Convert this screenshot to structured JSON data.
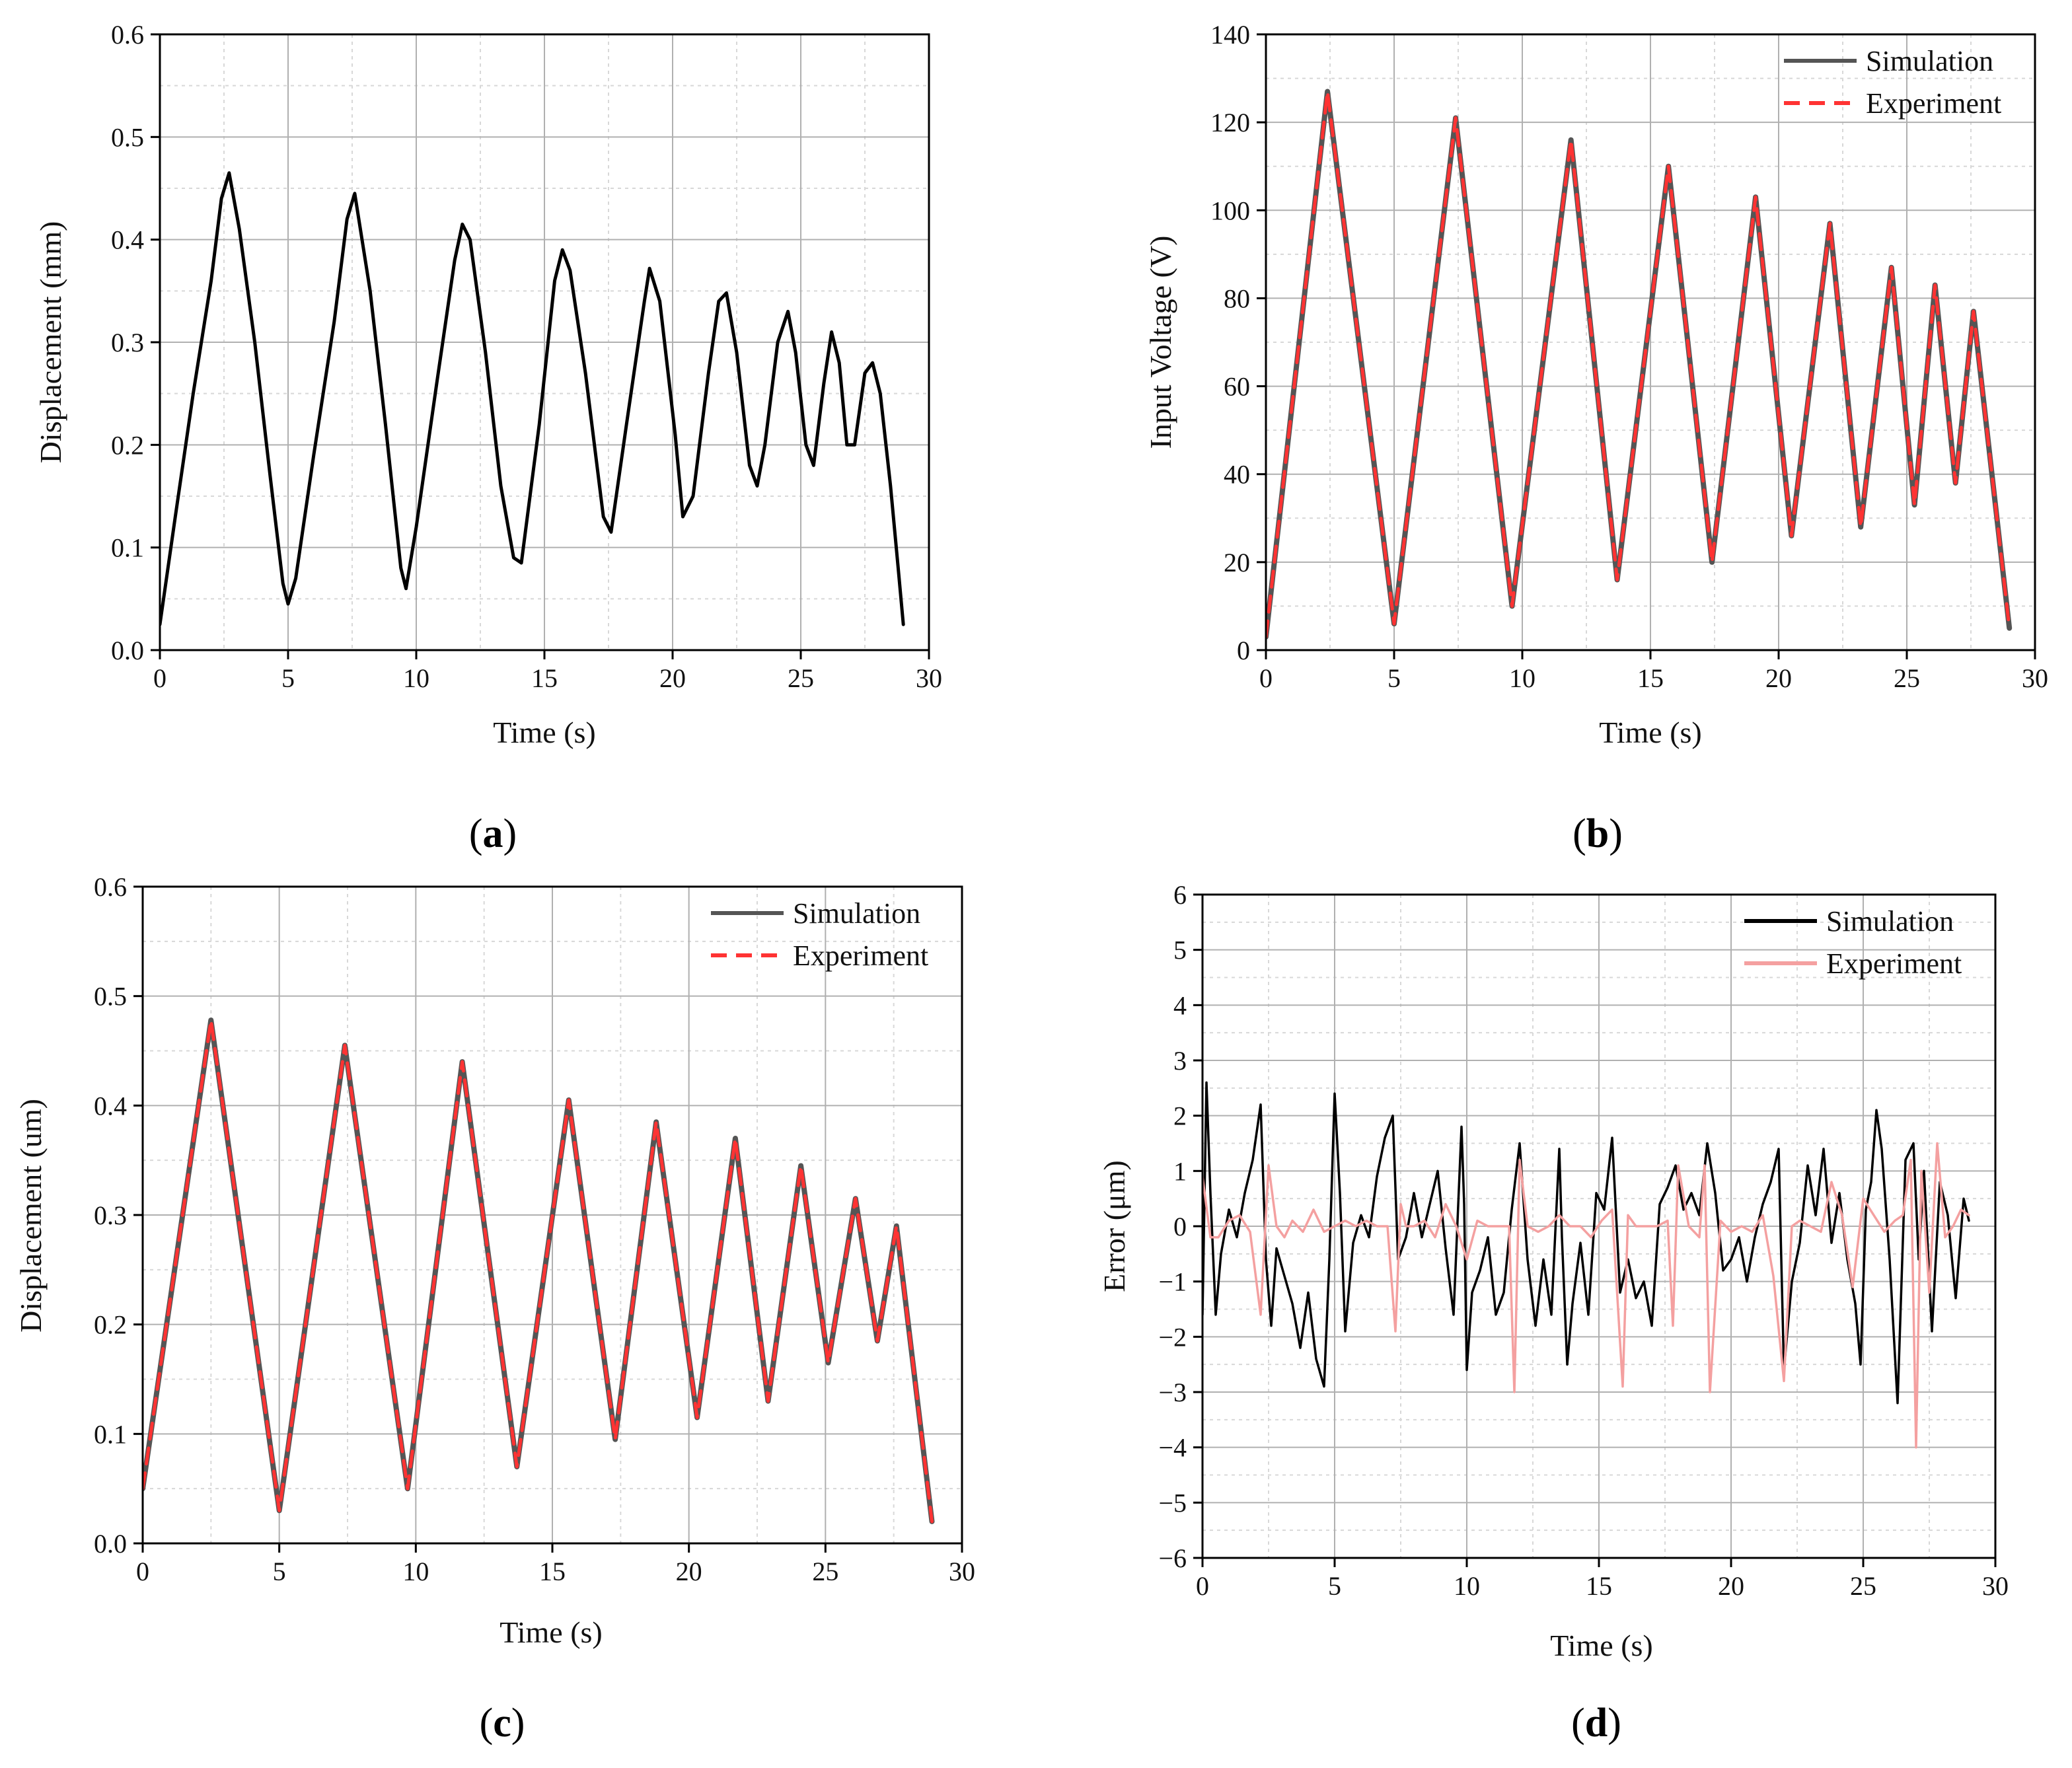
{
  "colors": {
    "simulation": "#555555",
    "experiment": "#ff3333",
    "black_series": "#000000",
    "experiment_light": "#f4a0a0",
    "grid_major": "#b0b0b0",
    "grid_minor": "#d8d8d8",
    "axis": "#000000"
  },
  "chart_data": [
    {
      "id": "a",
      "type": "line",
      "caption": {
        "open": "(",
        "letter": "a",
        "close": ")"
      },
      "xlabel": "Time (s)",
      "ylabel": "Displacement (mm)",
      "xlim": [
        0,
        30
      ],
      "ylim": [
        0,
        0.6
      ],
      "xticks": [
        0,
        5,
        10,
        15,
        20,
        25,
        30
      ],
      "xtick_labels": [
        "0",
        "5",
        "10",
        "15",
        "20",
        "25",
        "30"
      ],
      "yticks": [
        0,
        0.1,
        0.2,
        0.3,
        0.4,
        0.5,
        0.6
      ],
      "ytick_labels": [
        "0.0",
        "0.1",
        "0.2",
        "0.3",
        "0.4",
        "0.5",
        "0.6"
      ],
      "legend": null,
      "series": [
        {
          "name": "Displacement",
          "color_key": "black_series",
          "dash": "",
          "width": 5,
          "x": [
            0,
            0.6,
            1.3,
            2.0,
            2.4,
            2.7,
            3.1,
            3.7,
            4.3,
            4.8,
            5.0,
            5.3,
            6.0,
            6.8,
            7.3,
            7.6,
            8.2,
            8.8,
            9.4,
            9.6,
            10.0,
            10.8,
            11.5,
            11.8,
            12.1,
            12.7,
            13.3,
            13.8,
            14.1,
            14.8,
            15.4,
            15.7,
            16.0,
            16.6,
            17.3,
            17.6,
            18.2,
            18.9,
            19.1,
            19.5,
            20.1,
            20.4,
            20.8,
            21.4,
            21.8,
            22.1,
            22.5,
            23.0,
            23.3,
            23.6,
            24.1,
            24.5,
            24.8,
            25.2,
            25.5,
            25.9,
            26.2,
            26.5,
            26.8,
            27.1,
            27.5,
            27.8,
            28.1,
            28.5,
            28.8,
            29.0
          ],
          "y": [
            0.025,
            0.13,
            0.25,
            0.36,
            0.44,
            0.465,
            0.41,
            0.3,
            0.17,
            0.065,
            0.045,
            0.07,
            0.19,
            0.32,
            0.42,
            0.445,
            0.35,
            0.22,
            0.08,
            0.06,
            0.12,
            0.26,
            0.38,
            0.415,
            0.4,
            0.29,
            0.16,
            0.09,
            0.085,
            0.22,
            0.36,
            0.39,
            0.37,
            0.27,
            0.13,
            0.115,
            0.22,
            0.34,
            0.372,
            0.34,
            0.21,
            0.13,
            0.15,
            0.27,
            0.34,
            0.348,
            0.29,
            0.18,
            0.16,
            0.2,
            0.3,
            0.33,
            0.29,
            0.2,
            0.18,
            0.26,
            0.31,
            0.28,
            0.2,
            0.2,
            0.27,
            0.28,
            0.25,
            0.16,
            0.08,
            0.025
          ]
        }
      ]
    },
    {
      "id": "b",
      "type": "line",
      "caption": {
        "open": "(",
        "letter": "b",
        "close": ")"
      },
      "xlabel": "Time (s)",
      "ylabel": "Input Voltage (V)",
      "xlim": [
        0,
        30
      ],
      "ylim": [
        0,
        140
      ],
      "xticks": [
        0,
        5,
        10,
        15,
        20,
        25,
        30
      ],
      "xtick_labels": [
        "0",
        "5",
        "10",
        "15",
        "20",
        "25",
        "30"
      ],
      "yticks": [
        0,
        20,
        40,
        60,
        80,
        100,
        120,
        140
      ],
      "ytick_labels": [
        "0",
        "20",
        "40",
        "60",
        "80",
        "100",
        "120",
        "140"
      ],
      "legend": {
        "position": "top-right",
        "entries": [
          {
            "label": "Simulation",
            "color_key": "simulation",
            "dash": ""
          },
          {
            "label": "Experiment",
            "color_key": "experiment",
            "dash": "24 14"
          }
        ]
      },
      "series": [
        {
          "name": "Simulation",
          "color_key": "simulation",
          "dash": "",
          "width": 8,
          "x": [
            0,
            2.4,
            5.0,
            7.4,
            9.6,
            11.9,
            13.7,
            15.7,
            17.4,
            19.1,
            20.5,
            22.0,
            23.2,
            24.4,
            25.3,
            26.1,
            26.9,
            27.6,
            29.0
          ],
          "y": [
            3,
            127,
            6,
            121,
            10,
            116,
            16,
            110,
            20,
            103,
            26,
            97,
            28,
            87,
            33,
            83,
            38,
            77,
            5
          ]
        },
        {
          "name": "Experiment",
          "color_key": "experiment",
          "dash": "24 14",
          "width": 5,
          "x": [
            0,
            2.4,
            5.0,
            7.4,
            9.6,
            11.9,
            13.7,
            15.7,
            17.4,
            19.1,
            20.5,
            22.0,
            23.2,
            24.4,
            25.3,
            26.1,
            26.9,
            27.6,
            29.0
          ],
          "y": [
            3,
            127,
            6,
            121,
            10,
            116,
            16,
            110,
            20,
            103,
            26,
            97,
            28,
            87,
            33,
            83,
            38,
            77,
            5
          ]
        }
      ]
    },
    {
      "id": "c",
      "type": "line",
      "caption": {
        "open": "(",
        "letter": "c",
        "close": ")"
      },
      "xlabel": "Time (s)",
      "ylabel": "Displacement (um)",
      "xlim": [
        0,
        30
      ],
      "ylim": [
        0,
        0.6
      ],
      "xticks": [
        0,
        5,
        10,
        15,
        20,
        25,
        30
      ],
      "xtick_labels": [
        "0",
        "5",
        "10",
        "15",
        "20",
        "25",
        "30"
      ],
      "yticks": [
        0,
        0.1,
        0.2,
        0.3,
        0.4,
        0.5,
        0.6
      ],
      "ytick_labels": [
        "0.0",
        "0.1",
        "0.2",
        "0.3",
        "0.4",
        "0.5",
        "0.6"
      ],
      "legend": {
        "position": "top-right",
        "entries": [
          {
            "label": "Simulation",
            "color_key": "simulation",
            "dash": ""
          },
          {
            "label": "Experiment",
            "color_key": "experiment",
            "dash": "24 14"
          }
        ]
      },
      "series": [
        {
          "name": "Simulation",
          "color_key": "simulation",
          "dash": "",
          "width": 8,
          "x": [
            0,
            2.5,
            5.0,
            7.4,
            9.7,
            11.7,
            13.7,
            15.6,
            17.3,
            18.8,
            20.3,
            21.7,
            22.9,
            24.1,
            25.1,
            26.1,
            26.9,
            27.6,
            28.9
          ],
          "y": [
            0.05,
            0.478,
            0.03,
            0.455,
            0.05,
            0.44,
            0.07,
            0.405,
            0.095,
            0.385,
            0.115,
            0.37,
            0.13,
            0.345,
            0.165,
            0.315,
            0.185,
            0.29,
            0.02
          ]
        },
        {
          "name": "Experiment",
          "color_key": "experiment",
          "dash": "24 14",
          "width": 5,
          "x": [
            0,
            2.5,
            5.0,
            7.4,
            9.7,
            11.7,
            13.7,
            15.6,
            17.3,
            18.8,
            20.3,
            21.7,
            22.9,
            24.1,
            25.1,
            26.1,
            26.9,
            27.6,
            28.9
          ],
          "y": [
            0.05,
            0.478,
            0.03,
            0.455,
            0.05,
            0.44,
            0.07,
            0.405,
            0.095,
            0.385,
            0.115,
            0.37,
            0.13,
            0.345,
            0.165,
            0.315,
            0.185,
            0.29,
            0.02
          ]
        }
      ]
    },
    {
      "id": "d",
      "type": "line",
      "caption": {
        "open": "(",
        "letter": "d",
        "close": ")"
      },
      "xlabel": "Time (s)",
      "ylabel": "Error (μm)",
      "xlim": [
        0,
        30
      ],
      "ylim": [
        -6,
        6
      ],
      "xticks": [
        0,
        5,
        10,
        15,
        20,
        25,
        30
      ],
      "xtick_labels": [
        "0",
        "5",
        "10",
        "15",
        "20",
        "25",
        "30"
      ],
      "yticks": [
        -6,
        -5,
        -4,
        -3,
        -2,
        -1,
        0,
        1,
        2,
        3,
        4,
        5,
        6
      ],
      "ytick_labels": [
        "−6",
        "−5",
        "−4",
        "−3",
        "−2",
        "−1",
        "0",
        "1",
        "2",
        "3",
        "4",
        "5",
        "6"
      ],
      "legend": {
        "position": "top-right",
        "entries": [
          {
            "label": "Simulation",
            "color_key": "black_series",
            "dash": ""
          },
          {
            "label": "Experiment",
            "color_key": "experiment_light",
            "dash": ""
          }
        ]
      },
      "series": [
        {
          "name": "Simulation",
          "color_key": "black_series",
          "dash": "",
          "width": 3.5,
          "x": [
            0,
            0.15,
            0.3,
            0.5,
            0.7,
            1.0,
            1.3,
            1.6,
            1.9,
            2.2,
            2.4,
            2.6,
            2.8,
            3.1,
            3.4,
            3.7,
            4.0,
            4.3,
            4.6,
            4.8,
            5.0,
            5.2,
            5.4,
            5.7,
            6.0,
            6.3,
            6.6,
            6.9,
            7.2,
            7.4,
            7.7,
            8.0,
            8.3,
            8.6,
            8.9,
            9.2,
            9.5,
            9.8,
            9.9,
            10.0,
            10.2,
            10.5,
            10.8,
            11.1,
            11.4,
            11.7,
            12.0,
            12.3,
            12.6,
            12.9,
            13.2,
            13.5,
            13.6,
            13.8,
            14.0,
            14.3,
            14.6,
            14.9,
            15.2,
            15.5,
            15.8,
            16.1,
            16.4,
            16.7,
            17.0,
            17.3,
            17.6,
            17.9,
            18.2,
            18.5,
            18.8,
            19.1,
            19.4,
            19.7,
            20.0,
            20.3,
            20.6,
            20.9,
            21.2,
            21.5,
            21.8,
            22.0,
            22.3,
            22.6,
            22.9,
            23.2,
            23.5,
            23.8,
            24.1,
            24.4,
            24.7,
            24.9,
            25.1,
            25.3,
            25.5,
            25.7,
            26.0,
            26.3,
            26.6,
            26.9,
            27.1,
            27.3,
            27.6,
            27.9,
            28.2,
            28.5,
            28.8,
            29.0
          ],
          "y": [
            -1.6,
            2.6,
            0.6,
            -1.6,
            -0.5,
            0.3,
            -0.2,
            0.6,
            1.2,
            2.2,
            -0.6,
            -1.8,
            -0.4,
            -0.9,
            -1.4,
            -2.2,
            -1.2,
            -2.4,
            -2.9,
            -0.6,
            2.4,
            0.6,
            -1.9,
            -0.3,
            0.2,
            -0.2,
            0.9,
            1.6,
            2.0,
            -0.6,
            -0.2,
            0.6,
            -0.2,
            0.4,
            1.0,
            -0.4,
            -1.6,
            1.8,
            0.4,
            -2.6,
            -1.2,
            -0.8,
            -0.2,
            -1.6,
            -1.2,
            0.3,
            1.5,
            -0.6,
            -1.8,
            -0.6,
            -1.6,
            1.4,
            -0.2,
            -2.5,
            -1.4,
            -0.3,
            -1.6,
            0.6,
            0.3,
            1.6,
            -1.2,
            -0.6,
            -1.3,
            -1.0,
            -1.8,
            0.4,
            0.7,
            1.1,
            0.3,
            0.6,
            0.2,
            1.5,
            0.6,
            -0.8,
            -0.6,
            -0.2,
            -1.0,
            -0.2,
            0.4,
            0.8,
            1.4,
            -2.6,
            -1.0,
            -0.3,
            1.1,
            0.2,
            1.4,
            -0.3,
            0.6,
            -0.6,
            -1.4,
            -2.5,
            0.3,
            0.8,
            2.1,
            1.4,
            -0.6,
            -3.2,
            1.2,
            1.5,
            -0.6,
            1.0,
            -1.9,
            0.8,
            0.2,
            -1.3,
            0.5,
            0.1
          ]
        },
        {
          "name": "Experiment",
          "color_key": "experiment_light",
          "dash": "",
          "width": 3.5,
          "x": [
            0,
            0.3,
            0.6,
            1.0,
            1.4,
            1.8,
            2.2,
            2.5,
            2.8,
            3.1,
            3.4,
            3.8,
            4.2,
            4.6,
            5.0,
            5.4,
            5.8,
            6.2,
            6.6,
            7.0,
            7.3,
            7.5,
            7.7,
            8.0,
            8.4,
            8.8,
            9.2,
            9.6,
            10.0,
            10.4,
            10.8,
            11.2,
            11.6,
            11.8,
            12.0,
            12.3,
            12.7,
            13.1,
            13.5,
            13.9,
            14.3,
            14.7,
            15.1,
            15.5,
            15.9,
            16.1,
            16.4,
            16.8,
            17.2,
            17.6,
            17.8,
            18.0,
            18.4,
            18.8,
            19.0,
            19.2,
            19.6,
            20.0,
            20.4,
            20.8,
            21.2,
            21.6,
            22.0,
            22.3,
            22.6,
            23.0,
            23.4,
            23.8,
            24.2,
            24.6,
            25.0,
            25.4,
            25.8,
            26.2,
            26.5,
            26.8,
            27.0,
            27.2,
            27.5,
            27.8,
            28.1,
            28.4,
            28.7,
            29.0
          ],
          "y": [
            0.9,
            -0.2,
            -0.2,
            0.1,
            0.2,
            -0.1,
            -1.6,
            1.1,
            0.0,
            -0.2,
            0.1,
            -0.1,
            0.3,
            -0.1,
            0.0,
            0.1,
            0.0,
            0.1,
            0.0,
            0.0,
            -1.9,
            0.4,
            0.0,
            0.0,
            0.1,
            -0.2,
            0.4,
            0.0,
            -0.6,
            0.1,
            0.0,
            0.0,
            0.0,
            -3.0,
            1.2,
            0.0,
            -0.1,
            0.0,
            0.2,
            0.0,
            0.0,
            -0.2,
            0.1,
            0.3,
            -2.9,
            0.2,
            0.0,
            0.0,
            0.0,
            0.1,
            -1.8,
            1.1,
            0.0,
            -0.2,
            1.1,
            -3.0,
            0.1,
            -0.1,
            0.0,
            -0.1,
            0.2,
            -0.9,
            -2.8,
            0.0,
            0.1,
            0.0,
            -0.1,
            0.8,
            0.2,
            -1.1,
            0.5,
            0.2,
            -0.1,
            0.1,
            0.2,
            1.2,
            -4.0,
            1.0,
            -1.2,
            1.5,
            -0.2,
            0.0,
            0.3,
            0.2
          ]
        }
      ]
    }
  ]
}
